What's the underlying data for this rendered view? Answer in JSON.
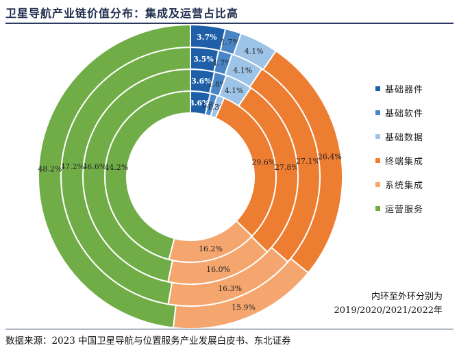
{
  "title": "卫星导航产业链价值分布：集成及运营占比高",
  "chart_data": {
    "type": "donut",
    "rings": [
      "2019",
      "2020",
      "2021",
      "2022"
    ],
    "categories": [
      "基础器件",
      "基础软件",
      "基础数据",
      "终端集成",
      "系统集成",
      "运营服务"
    ],
    "colors": [
      "#1f5fa8",
      "#4a86c5",
      "#9dc3e6",
      "#ed7d31",
      "#f4a66e",
      "#70ad47"
    ],
    "series": [
      {
        "name": "2019",
        "values": [
          3.6,
          1.3,
          1.3,
          29.6,
          16.2,
          44.2
        ],
        "labels": [
          "3.6%",
          "1.3%",
          "1.3%",
          "29.6%",
          "16.2%",
          "44.2%"
        ]
      },
      {
        "name": "2020",
        "values": [
          3.6,
          1.8,
          4.1,
          27.8,
          16.0,
          46.6
        ],
        "labels": [
          "3.6%",
          "1.8%",
          "4.1%",
          "27.8%",
          "16.0%",
          "46.6%"
        ]
      },
      {
        "name": "2021",
        "values": [
          3.5,
          1.7,
          4.1,
          27.1,
          16.3,
          47.2
        ],
        "labels": [
          "3.5%",
          "1.7%",
          "4.1%",
          "27.1%",
          "16.3%",
          "47.2%"
        ]
      },
      {
        "name": "2022",
        "values": [
          3.7,
          1.7,
          4.1,
          26.4,
          15.9,
          48.2
        ],
        "labels": [
          "3.7%",
          "1.7%",
          "4.1%",
          "26.4%",
          "15.9%",
          "48.2%"
        ]
      }
    ],
    "legend_position": "right"
  },
  "note": {
    "line1": "内环至外环分别为",
    "line2": "2019/2020/2021/2022年"
  },
  "source": "数据来源：2023 中国卫星导航与位置服务产业发展白皮书、东北证券"
}
